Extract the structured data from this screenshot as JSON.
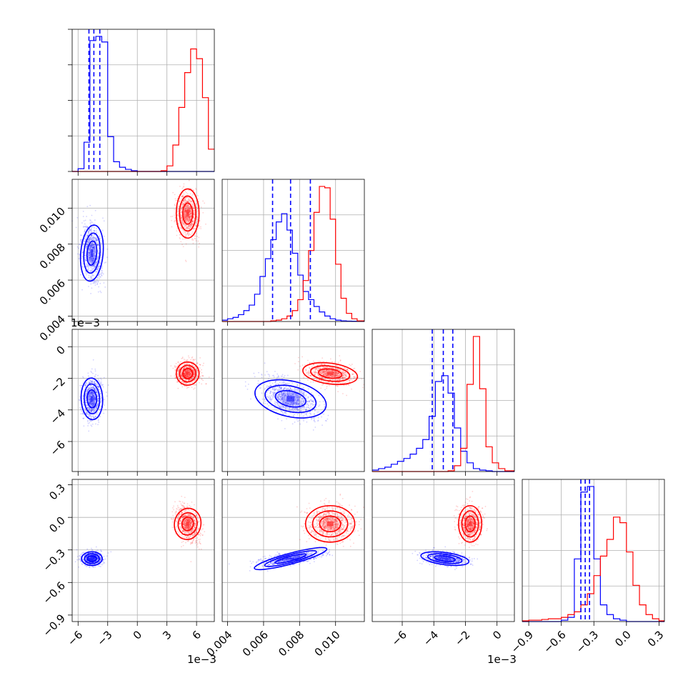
{
  "colors": {
    "series_a": "#0000ff",
    "series_b": "#ff0000",
    "grid": "#b0b0b0",
    "frame": "#000000"
  },
  "chart_data": {
    "type": "corner",
    "grid": true,
    "series": [
      {
        "color": "#0000ff",
        "quantiles": [
          [
            -4.9,
            -4.4,
            -3.8
          ],
          [
            0.0065,
            0.0075,
            0.0086
          ],
          [
            -4.1,
            -3.4,
            -2.8
          ],
          [
            -0.42,
            -0.38,
            -0.34
          ]
        ],
        "means": [
          -4.6,
          0.0075,
          -3.3,
          -0.38
        ],
        "sds": [
          0.5,
          0.0008,
          0.65,
          0.03
        ],
        "correlations": [
          [
            1,
            -0.2,
            0.1,
            0.0
          ],
          [
            -0.2,
            1,
            -0.5,
            0.6
          ],
          [
            0.1,
            -0.5,
            1,
            -0.3
          ],
          [
            0.0,
            0.6,
            -0.3,
            1
          ]
        ]
      },
      {
        "color": "#ff0000",
        "quantiles": [],
        "means": [
          5.1,
          0.0097,
          -1.7,
          -0.06
        ],
        "sds": [
          0.55,
          0.00065,
          0.35,
          0.08
        ],
        "correlations": [
          [
            1,
            0.0,
            0.0,
            -0.4
          ],
          [
            0.0,
            1,
            -0.3,
            0.0
          ],
          [
            0.0,
            -0.3,
            1,
            0.0
          ],
          [
            -0.4,
            0.0,
            0.0,
            1
          ]
        ]
      }
    ],
    "variables": [
      {
        "range": [
          -6.6,
          7.8
        ],
        "ticks": [
          -6,
          -3,
          0,
          3,
          6
        ],
        "tick_labels": [
          "−6",
          "−3",
          "0",
          "3",
          "6"
        ],
        "offset_text": "1e−3"
      },
      {
        "range": [
          0.0037,
          0.0116
        ],
        "ticks": [
          0.004,
          0.006,
          0.008,
          0.01
        ],
        "tick_labels": [
          "0.004",
          "0.006",
          "0.008",
          "0.010"
        ],
        "offset_text": ""
      },
      {
        "range": [
          -7.9,
          1.1
        ],
        "ticks": [
          -6,
          -4,
          -2,
          0
        ],
        "tick_labels": [
          "−6",
          "−4",
          "−2",
          "0"
        ],
        "offset_text": "1e−3"
      },
      {
        "range": [
          -0.96,
          0.35
        ],
        "ticks": [
          -0.9,
          -0.6,
          -0.3,
          0.0,
          0.3
        ],
        "tick_labels": [
          "−0.9",
          "−0.6",
          "−0.3",
          "0.0",
          "0.3"
        ],
        "offset_text": ""
      }
    ],
    "histograms": [
      {
        "edges": [
          -6.6,
          -6.0,
          -5.4,
          -4.8,
          -4.2,
          -3.6,
          -3.0,
          -2.4,
          -1.8,
          -1.2,
          -0.6,
          0.0,
          0.6,
          1.2,
          1.8,
          2.4,
          3.0,
          3.6,
          4.2,
          4.8,
          5.4,
          6.0,
          6.6,
          7.2,
          7.8
        ],
        "blue": [
          0,
          0.02,
          0.21,
          0.94,
          0.97,
          0.93,
          0.25,
          0.07,
          0.03,
          0.015,
          0.005,
          0,
          0,
          0,
          0,
          0,
          0,
          0,
          0,
          0,
          0,
          0,
          0,
          0
        ],
        "red": [
          0,
          0,
          0,
          0,
          0,
          0,
          0,
          0,
          0,
          0,
          0,
          0,
          0,
          0,
          0,
          0.005,
          0.04,
          0.19,
          0.46,
          0.71,
          0.88,
          0.81,
          0.53,
          0.16
        ]
      },
      {
        "edges": [
          0.0037,
          0.004,
          0.0043,
          0.0046,
          0.0049,
          0.0052,
          0.0055,
          0.0058,
          0.0061,
          0.0064,
          0.0067,
          0.007,
          0.0073,
          0.0076,
          0.0079,
          0.0082,
          0.0085,
          0.0088,
          0.0091,
          0.0094,
          0.0097,
          0.01,
          0.0103,
          0.0106,
          0.0109,
          0.0112,
          0.0116
        ],
        "blue": [
          0.01,
          0.02,
          0.03,
          0.05,
          0.08,
          0.12,
          0.2,
          0.33,
          0.46,
          0.6,
          0.73,
          0.79,
          0.67,
          0.5,
          0.34,
          0.22,
          0.16,
          0.11,
          0.07,
          0.04,
          0.02,
          0.01,
          0.005,
          0.003,
          0.002,
          0.001
        ],
        "red": [
          0,
          0,
          0,
          0,
          0,
          0,
          0,
          0,
          0,
          0.005,
          0.01,
          0.02,
          0.04,
          0.08,
          0.16,
          0.3,
          0.52,
          0.8,
          0.99,
          0.98,
          0.75,
          0.42,
          0.17,
          0.06,
          0.02,
          0.005
        ]
      },
      {
        "edges": [
          -7.9,
          -7.5,
          -7.1,
          -6.7,
          -6.3,
          -5.9,
          -5.5,
          -5.1,
          -4.7,
          -4.3,
          -3.9,
          -3.5,
          -3.1,
          -2.7,
          -2.3,
          -1.9,
          -1.5,
          -1.1,
          -0.7,
          -0.3,
          0.1,
          0.5,
          1.1
        ],
        "blue": [
          0.01,
          0.02,
          0.03,
          0.05,
          0.07,
          0.09,
          0.12,
          0.16,
          0.22,
          0.38,
          0.62,
          0.66,
          0.54,
          0.3,
          0.14,
          0.06,
          0.02,
          0.01,
          0.005,
          0,
          0,
          0
        ],
        "red": [
          0,
          0,
          0,
          0,
          0,
          0,
          0,
          0,
          0,
          0,
          0,
          0,
          0.005,
          0.04,
          0.16,
          0.6,
          0.93,
          0.57,
          0.17,
          0.06,
          0.02,
          0.005
        ]
      },
      {
        "edges": [
          -0.96,
          -0.9,
          -0.84,
          -0.78,
          -0.72,
          -0.66,
          -0.6,
          -0.54,
          -0.48,
          -0.42,
          -0.36,
          -0.3,
          -0.24,
          -0.18,
          -0.12,
          -0.06,
          0.0,
          0.06,
          0.12,
          0.18,
          0.24,
          0.3,
          0.35
        ],
        "blue": [
          0,
          0,
          0,
          0,
          0,
          0,
          0.01,
          0.03,
          0.45,
          0.93,
          0.97,
          0.45,
          0.12,
          0.05,
          0.02,
          0.01,
          0,
          0,
          0,
          0,
          0,
          0
        ],
        "red": [
          0.005,
          0.01,
          0.01,
          0.015,
          0.02,
          0.02,
          0.03,
          0.05,
          0.07,
          0.12,
          0.2,
          0.33,
          0.47,
          0.59,
          0.75,
          0.71,
          0.5,
          0.26,
          0.12,
          0.05,
          0.02,
          0.005
        ]
      }
    ]
  }
}
